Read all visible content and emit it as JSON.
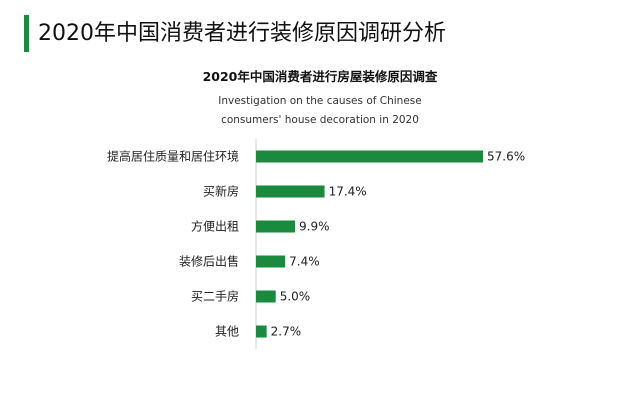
{
  "header": {
    "title": "2020年中国消费者进行装修原因调研分析",
    "accent_color": "#1a8a3e"
  },
  "chart_data": {
    "type": "bar",
    "orientation": "horizontal",
    "title": "2020年中国消费者进行房屋装修原因调查",
    "subtitle": "Investigation on the causes of Chinese consumers' house decoration in 2020",
    "categories": [
      "提高居住质量和居住环境",
      "买新房",
      "方便出租",
      "装修后出售",
      "买二手房",
      "其他"
    ],
    "values": [
      57.6,
      17.4,
      9.9,
      7.4,
      5.0,
      2.7
    ],
    "value_labels": [
      "57.6%",
      "17.4%",
      "9.9%",
      "7.4%",
      "5.0%",
      "2.7%"
    ],
    "unit": "%",
    "bar_color": "#1a8a3e",
    "xlim": [
      0,
      60
    ],
    "grid": false,
    "legend": "none"
  }
}
